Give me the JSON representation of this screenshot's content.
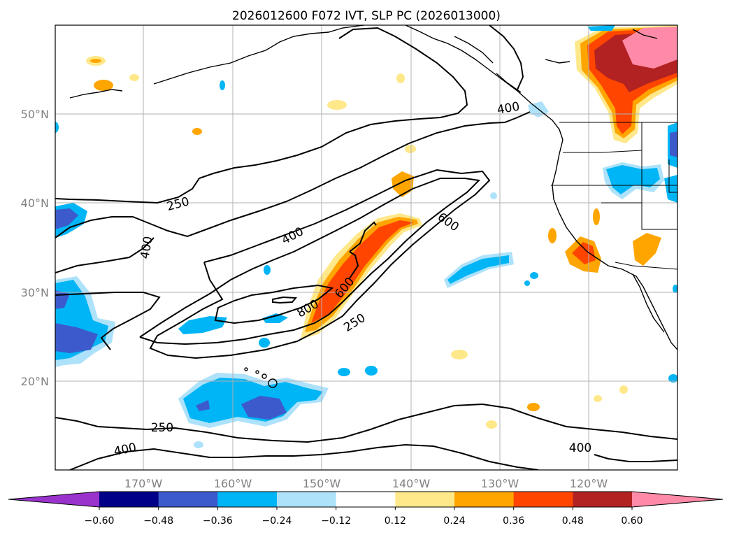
{
  "title": "2026012600 F072 IVT, SLP PC (2026013000)",
  "lon_ticks": [
    "170°W",
    "160°W",
    "150°W",
    "140°W",
    "130°W",
    "120°W"
  ],
  "lat_ticks": [
    "50°N",
    "40°N",
    "30°N",
    "20°N"
  ],
  "colorbar": {
    "colors": [
      "#9933cc",
      "#000088",
      "#3c5acb",
      "#00b5f5",
      "#aee2fb",
      "#ffffff",
      "#ffe88a",
      "#ffa500",
      "#ff4500",
      "#b22222",
      "#ff8aa8"
    ],
    "ticks": [
      "−0.60",
      "−0.48",
      "−0.36",
      "−0.24",
      "−0.12",
      "0.12",
      "0.24",
      "0.36",
      "0.48",
      "0.60"
    ]
  },
  "contour_labels": [
    "250",
    "400",
    "400",
    "600",
    "800",
    "600",
    "250",
    "400",
    "250",
    "400",
    "400"
  ]
}
